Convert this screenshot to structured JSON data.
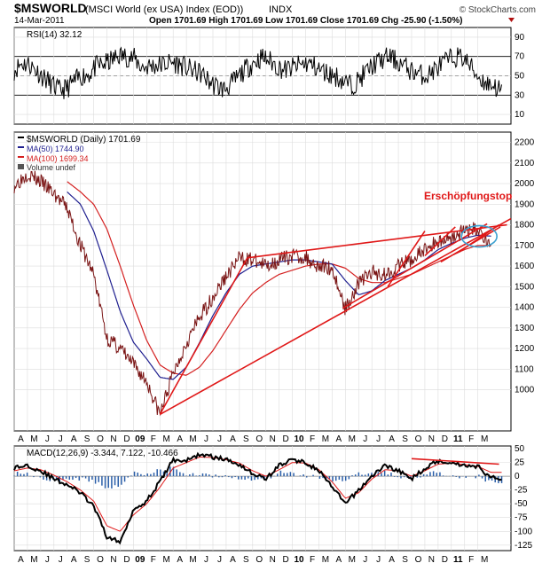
{
  "header": {
    "symbol": "$MSWORLD",
    "name": "(MSCI World (ex USA) Index (EOD))",
    "exchange": "INDX",
    "watermark": "© StockCharts.com",
    "date": "14-Mar-2011",
    "ohlc_text": "Open 1701.69  High 1701.69  Low 1701.69  Close 1701.69  Chg -25.90 (-1.50%)"
  },
  "colors": {
    "price": "#8b1a1a",
    "ma50": "#1f1f8f",
    "ma100": "#d42020",
    "trend": "#e01818",
    "rsi": "#000000",
    "macd_hist": "#2a5ea8",
    "circle": "#3aa0d0",
    "grid": "#dcdcdc"
  },
  "chart_data": [
    {
      "type": "line",
      "panel": "rsi",
      "label": "RSI(14) 32.12",
      "ylim": [
        0,
        100
      ],
      "ticks": [
        "90",
        "70",
        "50",
        "30",
        "10"
      ],
      "tick_values": [
        90,
        70,
        50,
        30,
        10
      ],
      "ref_lines": [
        70,
        30
      ],
      "seed": 11,
      "month_count": 36,
      "values_approx": [
        56,
        63,
        62,
        55,
        48,
        41,
        35,
        37,
        44,
        50,
        52,
        60,
        62,
        66,
        71,
        70,
        68,
        59,
        60,
        61,
        62,
        64,
        62,
        58,
        55,
        52,
        44,
        39,
        36,
        42,
        50,
        58,
        64,
        69,
        66,
        60,
        56,
        58,
        61,
        63,
        60,
        55,
        52,
        49,
        44,
        40,
        46,
        55,
        62,
        66,
        70,
        65,
        60,
        55,
        52,
        50,
        56,
        62,
        67,
        70,
        68,
        58,
        48,
        42,
        40,
        33
      ]
    },
    {
      "type": "line",
      "panel": "price",
      "legend": {
        "symbol": "$MSWORLD (Daily) 1701.69",
        "ma50": "MA(50) 1744.90",
        "ma100": "MA(100) 1699.34",
        "volume": "Volume undef"
      },
      "annotation": "Erschöpfungstop",
      "ylim": [
        800,
        2250
      ],
      "ticks": [
        "2200",
        "2100",
        "2000",
        "1900",
        "1800",
        "1700",
        "1600",
        "1500",
        "1400",
        "1300",
        "1200",
        "1100",
        "1000"
      ],
      "tick_values": [
        2200,
        2100,
        2000,
        1900,
        1800,
        1700,
        1600,
        1500,
        1400,
        1300,
        1200,
        1100,
        1000
      ],
      "series": [
        {
          "name": "$MSWORLD",
          "x": [
            0,
            1,
            2,
            3,
            4,
            5,
            6,
            7,
            8,
            9,
            10,
            11,
            12,
            13,
            14,
            15,
            16,
            17,
            18,
            19,
            20,
            21,
            22,
            23,
            24,
            25,
            26,
            27,
            28,
            29,
            30,
            31,
            32,
            33,
            34,
            35,
            36
          ],
          "values": [
            1990,
            2050,
            2010,
            1950,
            1880,
            1700,
            1560,
            1250,
            1200,
            1120,
            1040,
            880,
            1080,
            1230,
            1350,
            1450,
            1550,
            1640,
            1630,
            1600,
            1630,
            1650,
            1640,
            1600,
            1590,
            1390,
            1520,
            1570,
            1560,
            1600,
            1630,
            1680,
            1720,
            1740,
            1770,
            1780,
            1700
          ]
        },
        {
          "name": "MA(50)",
          "x": [
            4,
            5,
            6,
            7,
            8,
            9,
            10,
            11,
            12,
            13,
            14,
            15,
            16,
            17,
            18,
            19,
            20,
            21,
            22,
            23,
            24,
            25,
            26,
            27,
            28,
            29,
            30,
            31,
            32,
            33,
            34,
            35,
            36
          ],
          "values": [
            1960,
            1900,
            1770,
            1580,
            1380,
            1230,
            1150,
            1060,
            1050,
            1110,
            1230,
            1360,
            1470,
            1560,
            1600,
            1610,
            1620,
            1630,
            1630,
            1620,
            1610,
            1530,
            1460,
            1480,
            1530,
            1560,
            1590,
            1630,
            1680,
            1710,
            1735,
            1750,
            1745
          ]
        },
        {
          "name": "MA(100)",
          "x": [
            4,
            5,
            6,
            7,
            8,
            9,
            10,
            11,
            12,
            13,
            14,
            15,
            16,
            17,
            18,
            19,
            20,
            21,
            22,
            23,
            24,
            25,
            26,
            27,
            28,
            29,
            30,
            31,
            32,
            33,
            34,
            35,
            36
          ],
          "values": [
            2010,
            1960,
            1900,
            1780,
            1600,
            1410,
            1240,
            1120,
            1080,
            1070,
            1110,
            1190,
            1290,
            1390,
            1470,
            1520,
            1560,
            1580,
            1600,
            1610,
            1610,
            1590,
            1540,
            1520,
            1520,
            1540,
            1560,
            1590,
            1620,
            1650,
            1680,
            1700,
            1700
          ]
        }
      ],
      "trendlines": [
        {
          "x": [
            11,
            37.5
          ],
          "values": [
            880,
            1830
          ]
        },
        {
          "x": [
            11,
            17.6
          ],
          "values": [
            880,
            1640
          ]
        },
        {
          "x": [
            17.6,
            37.2
          ],
          "values": [
            1640,
            1800
          ]
        },
        {
          "x": [
            24.8,
            35.7
          ],
          "values": [
            1395,
            1805
          ]
        },
        {
          "x": [
            28.2,
            31.0
          ],
          "values": [
            1500,
            1770
          ]
        },
        {
          "x": [
            31.0,
            33.3
          ],
          "values": [
            1650,
            1790
          ]
        },
        {
          "x": [
            32.2,
            36.7
          ],
          "values": [
            1620,
            1790
          ]
        },
        {
          "x": [
            33.6,
            36.6
          ],
          "values": [
            1670,
            1800
          ]
        }
      ],
      "circle": {
        "x": 35.1,
        "value": 1744
      }
    },
    {
      "type": "line",
      "panel": "macd",
      "label": "MACD(12,26,9) -3.344, 7.122, -10.466",
      "ylim": [
        -135,
        55
      ],
      "ticks": [
        "50",
        "25",
        "0",
        "-25",
        "-50",
        "-75",
        "-100",
        "-125"
      ],
      "tick_values": [
        50,
        25,
        0,
        -25,
        -50,
        -75,
        -100,
        -125
      ],
      "macd_x": [
        0,
        1,
        2,
        3,
        4,
        5,
        6,
        7,
        8,
        9,
        10,
        11,
        12,
        13,
        14,
        15,
        16,
        17,
        18,
        19,
        20,
        21,
        22,
        23,
        24,
        25,
        26,
        27,
        28,
        29,
        30,
        31,
        32,
        33,
        34,
        35,
        36
      ],
      "macd": [
        15,
        20,
        10,
        -5,
        -15,
        -30,
        -55,
        -110,
        -120,
        -60,
        -45,
        -10,
        30,
        28,
        40,
        35,
        30,
        22,
        5,
        -5,
        20,
        30,
        25,
        10,
        -20,
        -50,
        -25,
        0,
        20,
        10,
        -5,
        15,
        28,
        25,
        20,
        18,
        -3
      ],
      "signal": [
        10,
        15,
        12,
        2,
        -10,
        -25,
        -45,
        -90,
        -100,
        -70,
        -50,
        -20,
        15,
        25,
        35,
        34,
        30,
        24,
        10,
        0,
        12,
        25,
        24,
        12,
        -10,
        -40,
        -30,
        -5,
        12,
        10,
        0,
        10,
        22,
        24,
        21,
        18,
        7
      ],
      "divergence": {
        "x": [
          30.0,
          36.6
        ],
        "values": [
          32,
          22
        ]
      }
    }
  ],
  "x_axis": {
    "labels": [
      "A",
      "M",
      "J",
      "J",
      "A",
      "S",
      "O",
      "N",
      "D",
      "09",
      "F",
      "M",
      "A",
      "M",
      "J",
      "J",
      "A",
      "S",
      "O",
      "N",
      "D",
      "10",
      "F",
      "M",
      "A",
      "M",
      "J",
      "J",
      "A",
      "S",
      "O",
      "N",
      "D",
      "11",
      "F",
      "M"
    ],
    "year_indices": [
      9,
      21,
      33
    ]
  }
}
